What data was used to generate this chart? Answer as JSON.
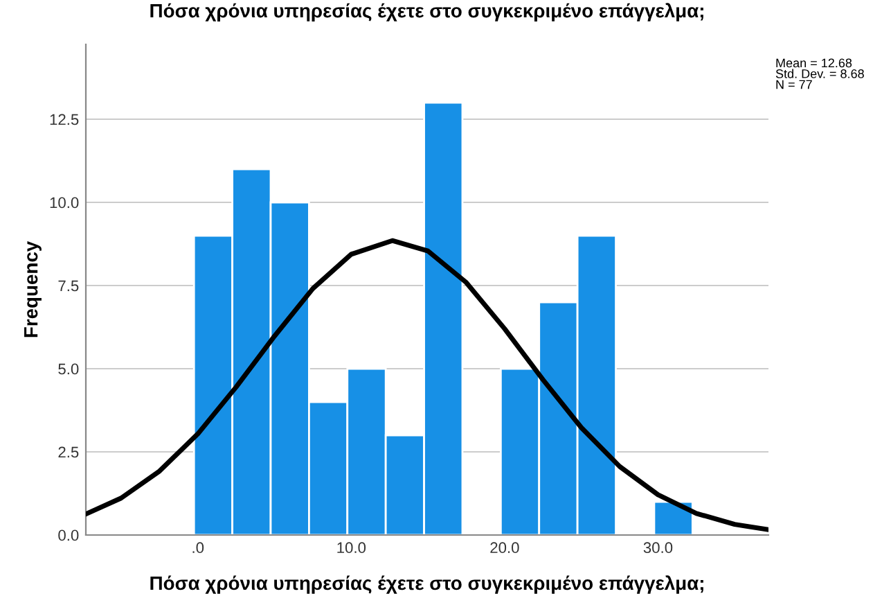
{
  "chart_data": {
    "type": "histogram",
    "title": "Πόσα χρόνια υπηρεσίας έχετε στο συγκεκριμένο επάγγελμα;",
    "xlabel": "Πόσα χρόνια υπηρεσίας έχετε στο συγκεκριμένο επάγγελμα;",
    "ylabel": "Frequency",
    "bins": [
      -0.25,
      2.25,
      4.75,
      7.25,
      9.75,
      12.25,
      14.75,
      17.25,
      19.75,
      22.25,
      24.75,
      27.25,
      29.75,
      32.25
    ],
    "values": [
      9,
      11,
      10,
      4,
      5,
      3,
      13,
      0,
      5,
      7,
      9,
      0,
      1
    ],
    "color": "#1790e6",
    "series": [
      {
        "type": "line",
        "color": "#000000",
        "x": [
          -7.3,
          -5,
          -2.5,
          0,
          2.5,
          5,
          7.5,
          10,
          12.68,
          15,
          17.5,
          20,
          22.5,
          25,
          27.5,
          30,
          32.5,
          35,
          37.2
        ],
        "values": [
          0.63,
          1.11,
          1.92,
          3.04,
          4.45,
          5.98,
          7.41,
          8.44,
          8.85,
          8.54,
          7.59,
          6.2,
          4.67,
          3.23,
          2.06,
          1.21,
          0.65,
          0.32,
          0.16
        ]
      }
    ],
    "annotations": [
      "Mean = 12.68\nStd. Dev. = 8.68\nN = 77"
    ],
    "xlim": [
      -7.3,
      37.2
    ],
    "ylim": [
      0,
      14.75
    ],
    "xticks": [
      {
        "value": 0,
        "label": ".0"
      },
      {
        "value": 10,
        "label": "10.0"
      },
      {
        "value": 20,
        "label": "20.0"
      },
      {
        "value": 30,
        "label": "30.0"
      }
    ],
    "yticks": [
      {
        "value": 0,
        "label": "0.0"
      },
      {
        "value": 2.5,
        "label": "2.5"
      },
      {
        "value": 5,
        "label": "5.0"
      },
      {
        "value": 7.5,
        "label": "7.5"
      },
      {
        "value": 10,
        "label": "10.0"
      },
      {
        "value": 12.5,
        "label": "12.5"
      }
    ],
    "grid": "y",
    "legend": false
  }
}
